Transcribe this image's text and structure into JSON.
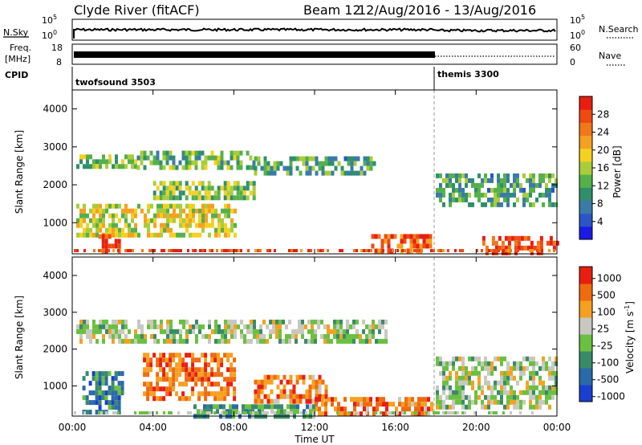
{
  "header": {
    "title": "Clyde River (fitACF)",
    "beam": "Beam 12",
    "dates": "12/Aug/2016 - 13/Aug/2016"
  },
  "top_panels": {
    "nsky_label": "N.Sky",
    "nsky_ticks": [
      "10^5",
      "10^0"
    ],
    "nsearch_label": "N.Search",
    "nsearch_ticks": [
      "10^5",
      "10^0"
    ],
    "freq_label": "Freq.",
    "freq_unit": "[MHz]",
    "freq_ticks": [
      "18",
      "8"
    ],
    "nave_label": "Nave",
    "nave_ticks": [
      "60",
      "0"
    ],
    "cpid_label": "CPID",
    "cpid_modes": [
      {
        "name": "twofsound 3503",
        "start_hour": 0,
        "end_hour": 18
      },
      {
        "name": "themis 3300",
        "start_hour": 18,
        "end_hour": 24
      }
    ]
  },
  "chart_data": [
    {
      "type": "heatmap",
      "xlabel": "",
      "ylabel": "Slant Range [km]",
      "x_range_hours": [
        0,
        24
      ],
      "ylim": [
        180,
        4500
      ],
      "y_ticks": [
        "1000",
        "2000",
        "3000",
        "4000"
      ],
      "colorbar": {
        "label": "Power [dB]",
        "ticks": [
          "4",
          "8",
          "12",
          "16",
          "20",
          "24",
          "28"
        ],
        "colors": [
          "#1a1ae6",
          "#2a55c8",
          "#3a7aa8",
          "#2f8f6a",
          "#55b04a",
          "#a8cc3a",
          "#f5d020",
          "#f5a020",
          "#f07818",
          "#ee4a12",
          "#e81e10"
        ]
      },
      "echo_bands": [
        {
          "t0": 0.2,
          "t1": 3.2,
          "r0": 2450,
          "r1": 2800,
          "level": 0.45
        },
        {
          "t0": 3.2,
          "t1": 9.0,
          "r0": 2400,
          "r1": 2900,
          "level": 0.4
        },
        {
          "t0": 9.0,
          "t1": 15.0,
          "r0": 2300,
          "r1": 2750,
          "level": 0.35
        },
        {
          "t0": 0.2,
          "t1": 8.0,
          "r0": 700,
          "r1": 1500,
          "level": 0.55
        },
        {
          "t0": 1.3,
          "t1": 2.3,
          "r0": 200,
          "r1": 700,
          "level": 0.95
        },
        {
          "t0": 14.8,
          "t1": 17.8,
          "r0": 200,
          "r1": 700,
          "level": 0.8
        },
        {
          "t0": 20.3,
          "t1": 24.0,
          "r0": 200,
          "r1": 650,
          "level": 0.9
        },
        {
          "t0": 18.0,
          "t1": 24.0,
          "r0": 1500,
          "r1": 2300,
          "level": 0.35
        },
        {
          "t0": 4.0,
          "t1": 9.0,
          "r0": 1600,
          "r1": 2100,
          "level": 0.45
        }
      ]
    },
    {
      "type": "heatmap",
      "xlabel": "Time UT",
      "ylabel": "Slant Range [km]",
      "x_range_hours": [
        0,
        24
      ],
      "x_ticks": [
        "00:00",
        "04:00",
        "08:00",
        "12:00",
        "16:00",
        "20:00",
        "00:00"
      ],
      "ylim": [
        180,
        4500
      ],
      "y_ticks": [
        "1000",
        "2000",
        "3000",
        "4000"
      ],
      "colorbar": {
        "label": "Velocity [m s^-1]",
        "ticks": [
          "1000",
          "500",
          "100",
          "25",
          "-25",
          "-100",
          "-500",
          "-1000"
        ],
        "colors": [
          "#1a3fd0",
          "#2a6aa8",
          "#3a8a6a",
          "#6ac040",
          "#c8c8c0",
          "#f5a020",
          "#f06a10",
          "#e81e10"
        ]
      },
      "echo_bands": [
        {
          "t0": 0.2,
          "t1": 15.5,
          "r0": 2200,
          "r1": 2800,
          "level": 0.5
        },
        {
          "t0": 0.5,
          "t1": 2.5,
          "r0": 300,
          "r1": 1400,
          "level": 0.25
        },
        {
          "t0": 3.5,
          "t1": 8.0,
          "r0": 700,
          "r1": 1900,
          "level": 0.8
        },
        {
          "t0": 9.0,
          "t1": 12.5,
          "r0": 600,
          "r1": 1300,
          "level": 0.78
        },
        {
          "t0": 12.0,
          "t1": 17.8,
          "r0": 200,
          "r1": 700,
          "level": 0.78
        },
        {
          "t0": 18.0,
          "t1": 24.0,
          "r0": 400,
          "r1": 1800,
          "level": 0.5
        },
        {
          "t0": 6.0,
          "t1": 12.0,
          "r0": 200,
          "r1": 500,
          "level": 0.35
        }
      ]
    }
  ]
}
